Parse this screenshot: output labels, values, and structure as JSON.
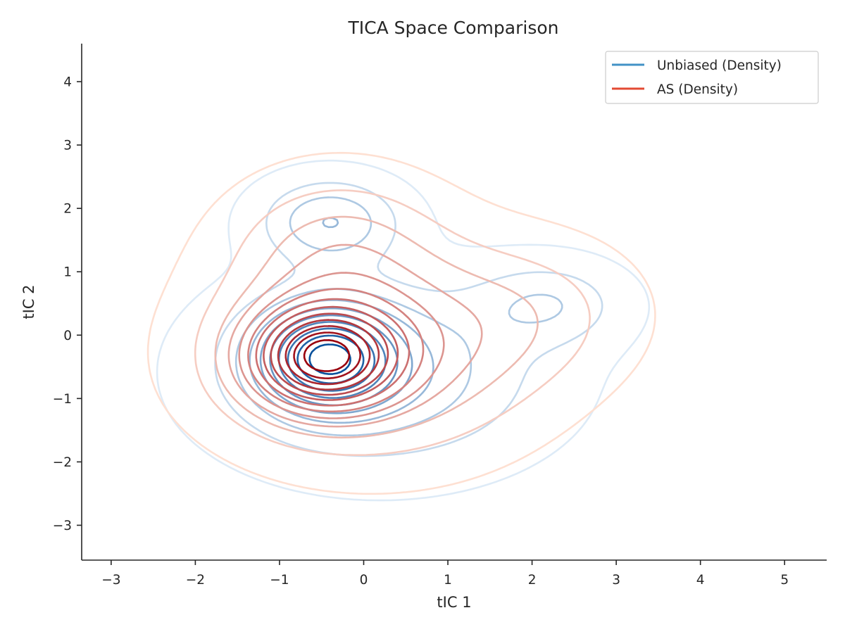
{
  "chart_data": {
    "type": "contour",
    "title": "TICA Space Comparison",
    "xlabel": "tIC 1",
    "ylabel": "tIC 2",
    "xlim": [
      -3.35,
      5.5
    ],
    "ylim": [
      -3.55,
      4.6
    ],
    "xticks": [
      -3,
      -2,
      -1,
      0,
      1,
      2,
      3,
      4,
      5
    ],
    "yticks": [
      -3,
      -2,
      -1,
      0,
      1,
      2,
      3,
      4
    ],
    "xtick_labels": [
      "−3",
      "−2",
      "−1",
      "0",
      "1",
      "2",
      "3",
      "4",
      "5"
    ],
    "ytick_labels": [
      "−3",
      "−2",
      "−1",
      "0",
      "1",
      "2",
      "3",
      "4"
    ],
    "grid": false,
    "legend_position": "top-right",
    "series": [
      {
        "name": "Unbiased (Density)",
        "legend_color": "#4292c6",
        "color_low": "#deebf7",
        "color_high": "#08519c",
        "levels": 10,
        "components": [
          {
            "x": -0.45,
            "y": -0.35,
            "sx": 0.55,
            "sy": 0.55,
            "w": 1.0
          },
          {
            "x": -0.4,
            "y": 1.8,
            "sx": 0.55,
            "sy": 0.45,
            "w": 0.45
          },
          {
            "x": 2.2,
            "y": 0.5,
            "sx": 0.6,
            "sy": 0.45,
            "w": 0.28
          },
          {
            "x": 0.2,
            "y": -0.6,
            "sx": 1.25,
            "sy": 0.95,
            "w": 0.45
          }
        ]
      },
      {
        "name": "AS (Density)",
        "legend_color": "#e34a33",
        "color_low": "#fee0d2",
        "color_high": "#99000d",
        "levels": 13,
        "components": [
          {
            "x": -0.5,
            "y": -0.35,
            "sx": 0.6,
            "sy": 0.55,
            "w": 1.0
          },
          {
            "x": 0.1,
            "y": -0.3,
            "sx": 1.25,
            "sy": 1.05,
            "w": 0.45
          },
          {
            "x": -0.3,
            "y": 1.4,
            "sx": 0.85,
            "sy": 0.8,
            "w": 0.25
          },
          {
            "x": 2.0,
            "y": 0.4,
            "sx": 0.9,
            "sy": 0.8,
            "w": 0.15
          }
        ]
      }
    ]
  }
}
